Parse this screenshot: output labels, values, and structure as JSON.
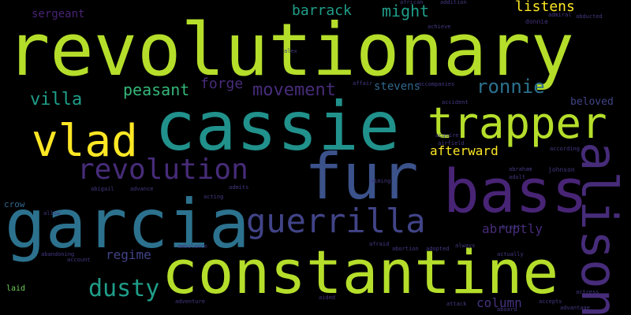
{
  "words": {
    "revolutionary": "revolutionary",
    "cassie": "cassie",
    "trapper": "trapper",
    "fur": "fur",
    "bass": "bass",
    "garcia": "garcia",
    "constantine": "constantine",
    "alison": "alison",
    "vlad": "vlad",
    "revolution": "revolution",
    "guerrilla": "guerrilla",
    "dusty": "dusty",
    "movement": "movement",
    "villa": "villa",
    "peasant": "peasant",
    "forge": "forge",
    "ronnie": "ronnie",
    "stevens": "stevens",
    "barrack": "barrack",
    "might": "might",
    "listens": "listens",
    "sergeant": "sergeant",
    "afterward": "afterward",
    "beloved": "beloved",
    "abruptly": "abruptly",
    "regime": "regime",
    "column": "column",
    "crow": "crow",
    "laid": "laid",
    "donnie": "donnie",
    "brett": "brett",
    "johnson": "johnson",
    "abigail": "abigail",
    "alex": "alex",
    "aided": "aided",
    "african": "african",
    "addition": "addition",
    "achieve": "achieve",
    "ambulance": "ambulance",
    "adventure": "adventure",
    "advance": "advance",
    "admits": "admits",
    "acting": "acting",
    "allow": "allow",
    "affair": "affair",
    "accident": "accident",
    "acquire": "acquire",
    "airfield": "airfield",
    "accompanies": "accompanies",
    "abandoning": "abandoning",
    "account": "account",
    "actually": "actually",
    "attack": "attack",
    "afraid": "afraid",
    "abortion": "abortion",
    "adopted": "adopted",
    "always": "always",
    "aboard": "aboard",
    "advantage": "advantage",
    "accepts": "accepts",
    "according": "according",
    "adult": "adult",
    "abraham": "abraham",
    "admiral": "admiral",
    "abducted": "abducted",
    "actress": "actress",
    "aiming": "aiming"
  }
}
